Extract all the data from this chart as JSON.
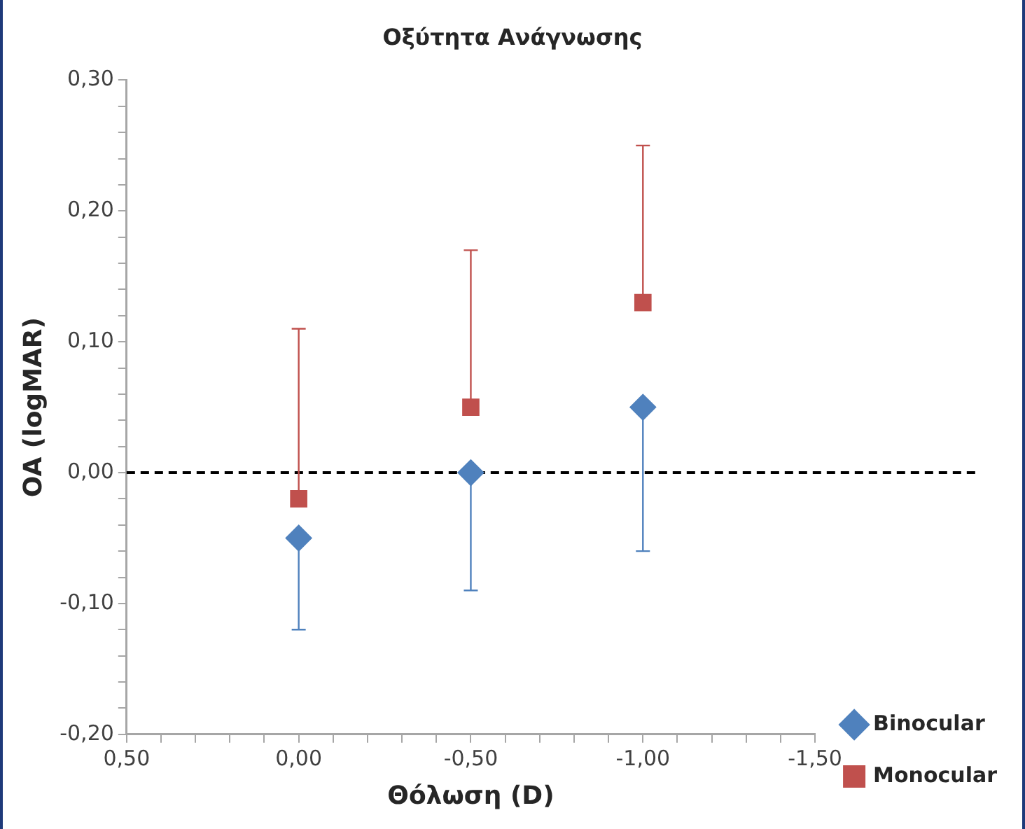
{
  "chart_data": {
    "type": "scatter",
    "title": "Οξύτητα Ανάγνωσης",
    "xlabel": "Θόλωση (D)",
    "ylabel": "OA (logMAR)",
    "x": [
      0,
      -0.5,
      -1
    ],
    "series": [
      {
        "name": "Binocular",
        "color": "#4f81bd",
        "marker": "diamond",
        "values": [
          -0.05,
          0.0,
          0.05
        ],
        "errors": [
          [
            -0.12,
            -0.05
          ],
          [
            -0.09,
            0.0
          ],
          [
            -0.06,
            0.05
          ]
        ]
      },
      {
        "name": "Monocular",
        "color": "#c0504d",
        "marker": "square",
        "values": [
          -0.02,
          0.05,
          0.13
        ],
        "errors": [
          [
            -0.02,
            0.11
          ],
          [
            0.05,
            0.17
          ],
          [
            0.13,
            0.25
          ]
        ]
      }
    ],
    "xlim": [
      0.5,
      -1.5
    ],
    "xticks": [
      {
        "value": 0.5,
        "label": "0,50"
      },
      {
        "value": 0.4,
        "label": null
      },
      {
        "value": 0.3,
        "label": null
      },
      {
        "value": 0.2,
        "label": null
      },
      {
        "value": 0.1,
        "label": null
      },
      {
        "value": 0,
        "label": "0,00"
      },
      {
        "value": -0.1,
        "label": null
      },
      {
        "value": -0.2,
        "label": null
      },
      {
        "value": -0.3,
        "label": null
      },
      {
        "value": -0.4,
        "label": null
      },
      {
        "value": -0.5,
        "label": "-0,50"
      },
      {
        "value": -0.6,
        "label": null
      },
      {
        "value": -0.7,
        "label": null
      },
      {
        "value": -0.8,
        "label": null
      },
      {
        "value": -0.9,
        "label": null
      },
      {
        "value": -1,
        "label": "-1,00"
      },
      {
        "value": -1.1,
        "label": null
      },
      {
        "value": -1.2,
        "label": null
      },
      {
        "value": -1.3,
        "label": null
      },
      {
        "value": -1.4,
        "label": null
      },
      {
        "value": -1.5,
        "label": "-1,50"
      }
    ],
    "ylim": [
      -0.2,
      0.3
    ],
    "yticks": [
      {
        "value": -0.2,
        "label": "-0,20"
      },
      {
        "value": -0.18,
        "label": null
      },
      {
        "value": -0.16,
        "label": null
      },
      {
        "value": -0.14,
        "label": null
      },
      {
        "value": -0.12,
        "label": null
      },
      {
        "value": -0.1,
        "label": "-0,10"
      },
      {
        "value": -0.08,
        "label": null
      },
      {
        "value": -0.06,
        "label": null
      },
      {
        "value": -0.04,
        "label": null
      },
      {
        "value": -0.02,
        "label": null
      },
      {
        "value": 0,
        "label": "0,00"
      },
      {
        "value": 0.02,
        "label": null
      },
      {
        "value": 0.04,
        "label": null
      },
      {
        "value": 0.06,
        "label": null
      },
      {
        "value": 0.08,
        "label": null
      },
      {
        "value": 0.1,
        "label": "0,10"
      },
      {
        "value": 0.12,
        "label": null
      },
      {
        "value": 0.14,
        "label": null
      },
      {
        "value": 0.16,
        "label": null
      },
      {
        "value": 0.18,
        "label": null
      },
      {
        "value": 0.2,
        "label": "0,20"
      },
      {
        "value": 0.22,
        "label": null
      },
      {
        "value": 0.24,
        "label": null
      },
      {
        "value": 0.26,
        "label": null
      },
      {
        "value": 0.28,
        "label": null
      },
      {
        "value": 0.3,
        "label": "0,30"
      }
    ],
    "ref_lines": [
      {
        "axis": "y",
        "value": 0,
        "color": "#000000",
        "line_style": "dashed"
      }
    ],
    "grid": false,
    "legend": "bottom right"
  }
}
